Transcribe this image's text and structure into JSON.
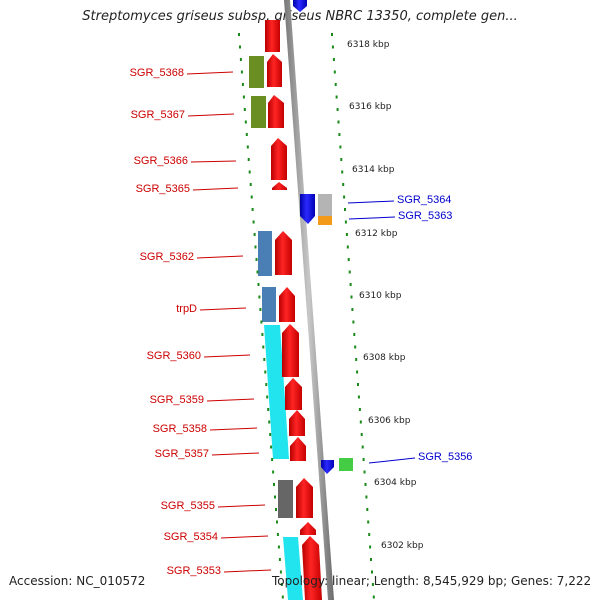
{
  "title": "Streptomyces griseus subsp. griseus NBRC 13350, complete gen...",
  "footer": {
    "accession": "Accession: NC_010572",
    "summary": "Topology: linear; Length: 8,545,929 bp; Genes: 7,222"
  },
  "colors": {
    "backbone": "#8f8f8f",
    "forward_gene": "#ee1111",
    "reverse_gene": "#1515ee",
    "forward_label": "#cc0000",
    "reverse_label": "#0000cc",
    "tick": "#1a8a1a",
    "cds_olive": "#6b8e23",
    "cds_steelblue": "#4a7fb5",
    "cds_cyan": "#22e4ee",
    "cds_gray": "#666666",
    "cds_lightgray": "#b4b4b4",
    "cds_orange": "#f39a1a",
    "cds_lightgreen": "#44cc44"
  },
  "scale_labels": [
    "6318 kbp",
    "6316 kbp",
    "6314 kbp",
    "6312 kbp",
    "6310 kbp",
    "6308 kbp",
    "6306 kbp",
    "6304 kbp",
    "6302 kbp"
  ],
  "forward_genes": [
    "SGR_5368",
    "SGR_5367",
    "SGR_5366",
    "SGR_5365",
    "SGR_5362",
    "trpD",
    "SGR_5360",
    "SGR_5359",
    "SGR_5358",
    "SGR_5357",
    "SGR_5355",
    "SGR_5354",
    "SGR_5353"
  ],
  "reverse_genes": [
    "SGR_5364",
    "SGR_5363",
    "SGR_5356"
  ]
}
